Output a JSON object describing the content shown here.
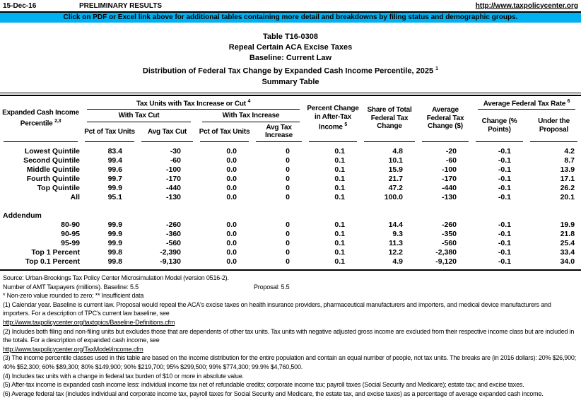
{
  "page": {
    "date": "15-Dec-16",
    "status": "PRELIMINARY RESULTS",
    "url": "http://www.taxpolicycenter.org",
    "banner": "Click on PDF or Excel link above for additional tables containing more detail and breakdowns by filing status and demographic groups.",
    "banner_color": "#00B0F0"
  },
  "title": {
    "line1": "Table T16-0308",
    "line2": "Repeal Certain ACA Excise Taxes",
    "line3": "Baseline: Current Law",
    "line4": "Distribution of Federal Tax Change by Expanded Cash Income Percentile, 2025",
    "line4_sup": "1",
    "line5": "Summary Table"
  },
  "table": {
    "header": {
      "stub_line1": "Expanded Cash Income",
      "stub_line2": "Percentile",
      "stub_sup": "2,3",
      "group_tax_units": "Tax Units with Tax Increase or Cut",
      "group_tax_units_sup": "4",
      "with_tax_cut": "With Tax Cut",
      "with_tax_increase": "With Tax Increase",
      "pct_of_tax_units_1": "Pct of Tax Units",
      "avg_tax_cut": "Avg Tax Cut",
      "pct_of_tax_units_2": "Pct of Tax Units",
      "avg_tax_increase": "Avg Tax Increase",
      "pct_change_after_tax": "Percent Change in After-Tax Income",
      "pct_change_after_tax_sup": "5",
      "share_total": "Share of Total Federal Tax Change",
      "avg_fed_change": "Average Federal Tax Change ($)",
      "group_avg_rate": "Average Federal Tax Rate",
      "group_avg_rate_sup": "6",
      "change_points": "Change (% Points)",
      "under_proposal": "Under the Proposal"
    },
    "rows": [
      {
        "label": "Lowest Quintile",
        "values": [
          "83.4",
          "-30",
          "0.0",
          "0",
          "0.1",
          "4.8",
          "-20",
          "-0.1",
          "4.2"
        ]
      },
      {
        "label": "Second Quintile",
        "values": [
          "99.4",
          "-60",
          "0.0",
          "0",
          "0.1",
          "10.1",
          "-60",
          "-0.1",
          "8.7"
        ]
      },
      {
        "label": "Middle Quintile",
        "values": [
          "99.6",
          "-100",
          "0.0",
          "0",
          "0.1",
          "15.9",
          "-100",
          "-0.1",
          "13.9"
        ]
      },
      {
        "label": "Fourth Quintile",
        "values": [
          "99.7",
          "-170",
          "0.0",
          "0",
          "0.1",
          "21.7",
          "-170",
          "-0.1",
          "17.1"
        ]
      },
      {
        "label": "Top Quintile",
        "values": [
          "99.9",
          "-440",
          "0.0",
          "0",
          "0.1",
          "47.2",
          "-440",
          "-0.1",
          "26.2"
        ]
      },
      {
        "label": "All",
        "values": [
          "95.1",
          "-130",
          "0.0",
          "0",
          "0.1",
          "100.0",
          "-130",
          "-0.1",
          "20.1"
        ]
      }
    ],
    "addendum_label": "Addendum",
    "addendum_rows": [
      {
        "label": "80-90",
        "values": [
          "99.9",
          "-260",
          "0.0",
          "0",
          "0.1",
          "14.4",
          "-260",
          "-0.1",
          "19.9"
        ]
      },
      {
        "label": "90-95",
        "values": [
          "99.9",
          "-360",
          "0.0",
          "0",
          "0.1",
          "9.3",
          "-350",
          "-0.1",
          "21.8"
        ]
      },
      {
        "label": "95-99",
        "values": [
          "99.9",
          "-560",
          "0.0",
          "0",
          "0.1",
          "11.3",
          "-560",
          "-0.1",
          "25.4"
        ]
      },
      {
        "label": "Top 1 Percent",
        "values": [
          "99.8",
          "-2,390",
          "0.0",
          "0",
          "0.1",
          "12.2",
          "-2,380",
          "-0.1",
          "33.4"
        ]
      },
      {
        "label": "Top 0.1 Percent",
        "values": [
          "99.8",
          "-9,130",
          "0.0",
          "0",
          "0.1",
          "4.9",
          "-9,120",
          "-0.1",
          "34.0"
        ]
      }
    ]
  },
  "footnotes": {
    "source": "Source: Urban-Brookings Tax Policy Center Microsimulation Model (version 0516-2).",
    "amt_label": "Number of AMT Taxpayers (millions).  Baseline: 5.5",
    "amt_proposal": "Proposal: 5.5",
    "legend": "* Non-zero value rounded to zero; ** Insufficient data",
    "notes": [
      {
        "text": "(1) Calendar year. Baseline is current law. Proposal would repeal the ACA's excise taxes on health insurance providers, pharmaceutical manufacturers and importers, and medical device manufacturers and importers. For a description of TPC's current law baseline, see",
        "link": "http://www.taxpolicycenter.org/taxtopics/Baseline-Definitions.cfm"
      },
      {
        "text": "(2) Includes both filing and non-filing units but excludes those that are dependents of other tax units. Tax units with negative adjusted gross income are excluded from their respective income class but are included in the totals. For a description of expanded cash income, see",
        "link": "http://www.taxpolicycenter.org/TaxModel/income.cfm"
      },
      {
        "text": "(3) The income percentile classes used in this table are based on the income distribution for the entire population and contain an equal number of people, not tax units. The breaks are (in 2016 dollars): 20% $26,900; 40% $52,300; 60% $89,300; 80% $149,900; 90% $219,700; 95% $299,500; 99% $774,300; 99.9% $4,760,500."
      },
      {
        "text": "(4) Includes tax units with a change in federal tax burden of $10 or more in absolute value."
      },
      {
        "text": "(5) After-tax income is expanded cash income less: individual income tax net of refundable credits; corporate income tax; payroll taxes (Social Security and Medicare); estate tax; and excise taxes."
      },
      {
        "text": "(6) Average federal tax (includes individual and corporate income tax, payroll taxes for Social Security and Medicare, the estate tax, and excise taxes) as a percentage of average expanded cash income."
      }
    ]
  }
}
